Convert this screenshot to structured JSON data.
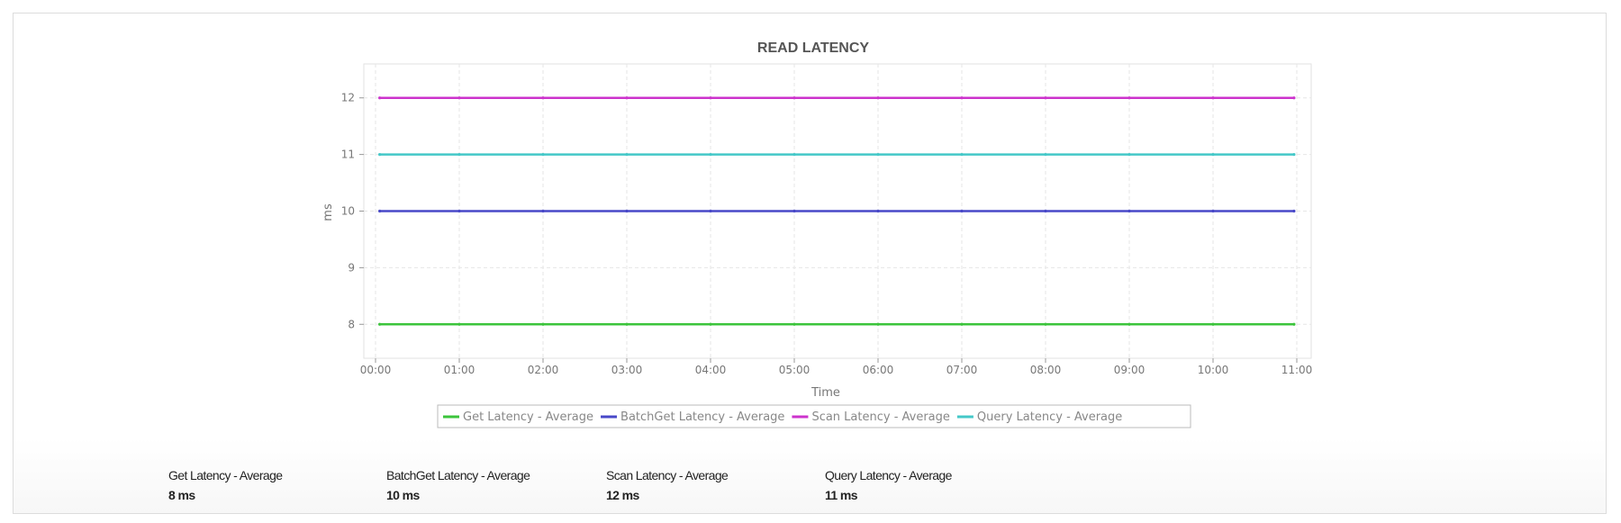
{
  "chart_data": {
    "type": "line",
    "title": "READ LATENCY",
    "xlabel": "Time",
    "ylabel": "ms",
    "x_ticks": [
      "00:00",
      "01:00",
      "02:00",
      "03:00",
      "04:00",
      "05:00",
      "06:00",
      "07:00",
      "08:00",
      "09:00",
      "10:00",
      "11:00"
    ],
    "y_ticks": [
      8,
      9,
      10,
      11,
      12
    ],
    "ylim": [
      7.4,
      12.6
    ],
    "xlim": [
      "00:00",
      "11:00"
    ],
    "grid": true,
    "legend": "bottom",
    "x": [
      "00:03",
      "01:00",
      "02:00",
      "03:00",
      "04:00",
      "05:00",
      "06:00",
      "07:00",
      "08:00",
      "09:00",
      "10:00",
      "10:58"
    ],
    "series": [
      {
        "name": "Get Latency - Average",
        "color": "#3cc43c",
        "values": [
          8,
          8,
          8,
          8,
          8,
          8,
          8,
          8,
          8,
          8,
          8,
          8
        ]
      },
      {
        "name": "BatchGet Latency - Average",
        "color": "#4848c8",
        "values": [
          10,
          10,
          10,
          10,
          10,
          10,
          10,
          10,
          10,
          10,
          10,
          10
        ]
      },
      {
        "name": "Scan Latency - Average",
        "color": "#cc33cc",
        "values": [
          12,
          12,
          12,
          12,
          12,
          12,
          12,
          12,
          12,
          12,
          12,
          12
        ]
      },
      {
        "name": "Query Latency - Average",
        "color": "#44c8c8",
        "values": [
          11,
          11,
          11,
          11,
          11,
          11,
          11,
          11,
          11,
          11,
          11,
          11
        ]
      }
    ]
  },
  "summary": [
    {
      "label": "Get Latency - Average",
      "value": "8 ms"
    },
    {
      "label": "BatchGet Latency - Average",
      "value": "10 ms"
    },
    {
      "label": "Scan Latency - Average",
      "value": "12 ms"
    },
    {
      "label": "Query Latency - Average",
      "value": "11 ms"
    }
  ]
}
